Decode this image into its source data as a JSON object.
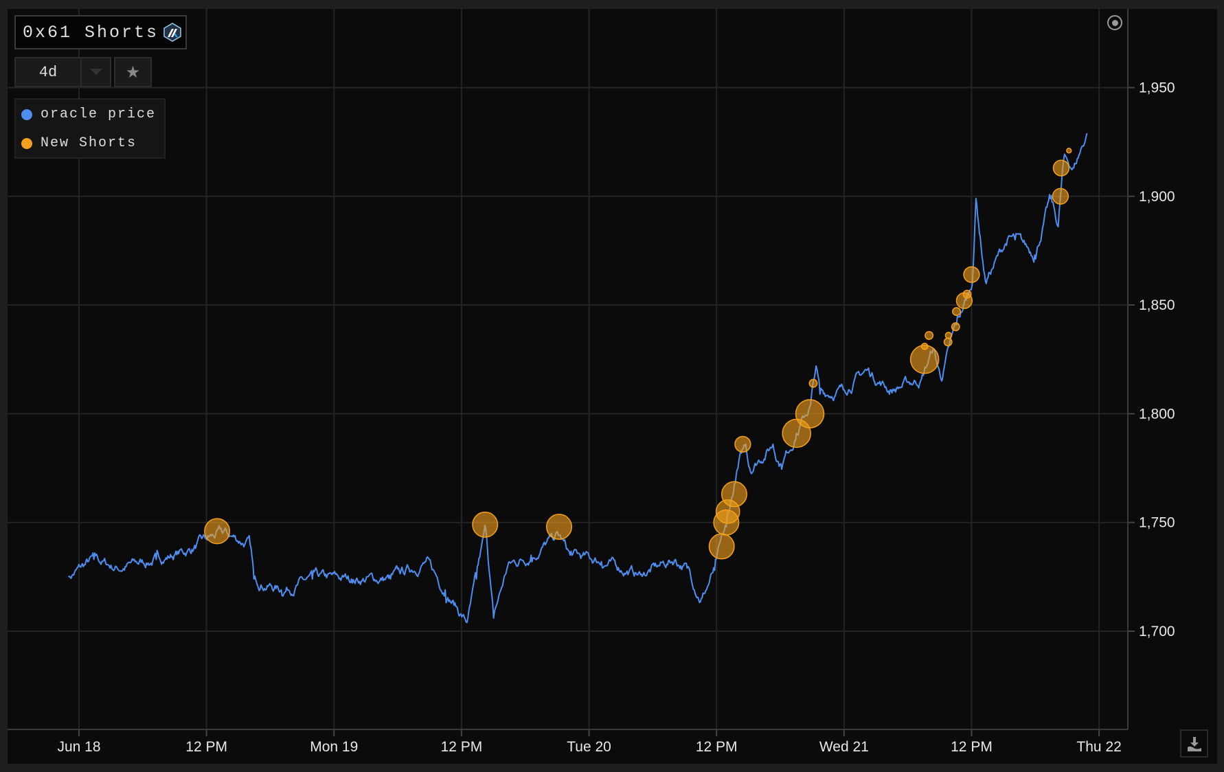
{
  "header": {
    "title": "0x61 Shorts",
    "logo_icon": "arbitrum-logo-icon",
    "range_value": "4d",
    "dropdown_icon": "caret-down-icon",
    "favorite_icon": "star-icon"
  },
  "legend": [
    {
      "label": "oracle price",
      "color": "#4f8ef0"
    },
    {
      "label": "New Shorts",
      "color": "#f5a11d"
    }
  ],
  "toolbar": {
    "reset_icon": "target-icon",
    "download_icon": "download-icon"
  },
  "chart_data": {
    "type": "line",
    "title": "0x61 Shorts",
    "xlabel": "",
    "ylabel": "",
    "ylim": [
      1660,
      1970
    ],
    "xlim": [
      "Jun 17 22:00",
      "Jun 22 04:00"
    ],
    "grid": true,
    "legend_position": "top-left",
    "x_ticks": [
      "Jun 18",
      "12 PM",
      "Mon 19",
      "12 PM",
      "Tue 20",
      "12 PM",
      "Wed 21",
      "12 PM",
      "Thu 22"
    ],
    "y_ticks": [
      "1,700",
      "1,750",
      "1,800",
      "1,850",
      "1,900",
      "1,950"
    ],
    "y_tick_values": [
      1700,
      1750,
      1800,
      1850,
      1900,
      1950
    ],
    "series": [
      {
        "name": "oracle price",
        "type": "line",
        "color": "#4f8ef0",
        "points": [
          [
            "Jun 17 23:00",
            1725
          ],
          [
            "Jun 18 01:24",
            1733
          ],
          [
            "Jun 18 03:36",
            1729
          ],
          [
            "Jun 18 07:16",
            1733
          ],
          [
            "Jun 18 10:13",
            1737
          ],
          [
            "Jun 18 12:03",
            1742
          ],
          [
            "Jun 18 13:31",
            1745
          ],
          [
            "Jun 18 16:06",
            1740
          ],
          [
            "Jun 18 16:28",
            1724
          ],
          [
            "Jun 18 19:02",
            1719
          ],
          [
            "Jun 18 21:58",
            1724
          ],
          [
            "Jun 19 01:39",
            1724
          ],
          [
            "Jun 19 05:19",
            1724
          ],
          [
            "Jun 19 08:38",
            1732
          ],
          [
            "Jun 19 10:28",
            1719
          ],
          [
            "Jun 19 12:31",
            1704
          ],
          [
            "Jun 19 13:24",
            1724
          ],
          [
            "Jun 19 14:17",
            1747
          ],
          [
            "Jun 19 15:01",
            1706
          ],
          [
            "Jun 19 16:21",
            1730
          ],
          [
            "Jun 19 18:33",
            1735
          ],
          [
            "Jun 19 21:07",
            1744
          ],
          [
            "Jun 19 22:13",
            1735
          ],
          [
            "Jun 20 01:10",
            1732
          ],
          [
            "Jun 20 04:50",
            1726
          ],
          [
            "Jun 20 08:08",
            1733
          ],
          [
            "Jun 20 09:14",
            1729
          ],
          [
            "Jun 20 10:34",
            1715
          ],
          [
            "Jun 20 11:49",
            1728
          ],
          [
            "Jun 20 12:55",
            1748
          ],
          [
            "Jun 20 14:01",
            1775
          ],
          [
            "Jun 20 14:45",
            1786
          ],
          [
            "Jun 20 15:07",
            1775
          ],
          [
            "Jun 20 17:19",
            1786
          ],
          [
            "Jun 20 18:03",
            1777
          ],
          [
            "Jun 20 19:31",
            1791
          ],
          [
            "Jun 20 20:51",
            1804
          ],
          [
            "Jun 20 21:22",
            1822
          ],
          [
            "Jun 20 21:44",
            1809
          ],
          [
            "Jun 20 23:56",
            1811
          ],
          [
            "Jun 21 02:08",
            1820
          ],
          [
            "Jun 21 04:21",
            1811
          ],
          [
            "Jun 21 07:17",
            1816
          ],
          [
            "Jun 21 08:23",
            1830
          ],
          [
            "Jun 21 09:07",
            1816
          ],
          [
            "Jun 21 10:35",
            1841
          ],
          [
            "Jun 21 12:03",
            1859
          ],
          [
            "Jun 21 12:25",
            1899
          ],
          [
            "Jun 21 13:18",
            1861
          ],
          [
            "Jun 21 15:22",
            1880
          ],
          [
            "Jun 21 16:06",
            1880
          ],
          [
            "Jun 21 17:57",
            1873
          ],
          [
            "Jun 21 19:25",
            1899
          ],
          [
            "Jun 21 20:09",
            1886
          ],
          [
            "Jun 21 20:40",
            1917
          ],
          [
            "Jun 21 21:37",
            1913
          ],
          [
            "Jun 21 22:52",
            1929
          ]
        ]
      },
      {
        "name": "New Shorts",
        "type": "scatter",
        "color": "#f5a11d",
        "points": [
          [
            "Jun 18 13:00",
            1746,
            16
          ],
          [
            "Jun 19 14:13",
            1749,
            16
          ],
          [
            "Jun 19 21:11",
            1748,
            16
          ],
          [
            "Jun 20 12:29",
            1739,
            16
          ],
          [
            "Jun 20 12:55",
            1750,
            16
          ],
          [
            "Jun 20 13:04",
            1755,
            15
          ],
          [
            "Jun 20 13:40",
            1763,
            16
          ],
          [
            "Jun 20 14:28",
            1786,
            10
          ],
          [
            "Jun 20 19:32",
            1791,
            18
          ],
          [
            "Jun 20 20:47",
            1800,
            18
          ],
          [
            "Jun 20 21:06",
            1814,
            5
          ],
          [
            "Jun 21 07:35",
            1825,
            18
          ],
          [
            "Jun 21 07:35",
            1831,
            4
          ],
          [
            "Jun 21 08:00",
            1836,
            5
          ],
          [
            "Jun 21 09:47",
            1833,
            5
          ],
          [
            "Jun 21 09:50",
            1836,
            4
          ],
          [
            "Jun 21 10:30",
            1840,
            5
          ],
          [
            "Jun 21 10:35",
            1847,
            5
          ],
          [
            "Jun 21 11:19",
            1852,
            10
          ],
          [
            "Jun 21 11:35",
            1855,
            5
          ],
          [
            "Jun 21 12:00",
            1864,
            10
          ],
          [
            "Jun 21 20:22",
            1900,
            10
          ],
          [
            "Jun 21 20:26",
            1913,
            10
          ],
          [
            "Jun 21 21:10",
            1921,
            3
          ]
        ]
      }
    ]
  }
}
